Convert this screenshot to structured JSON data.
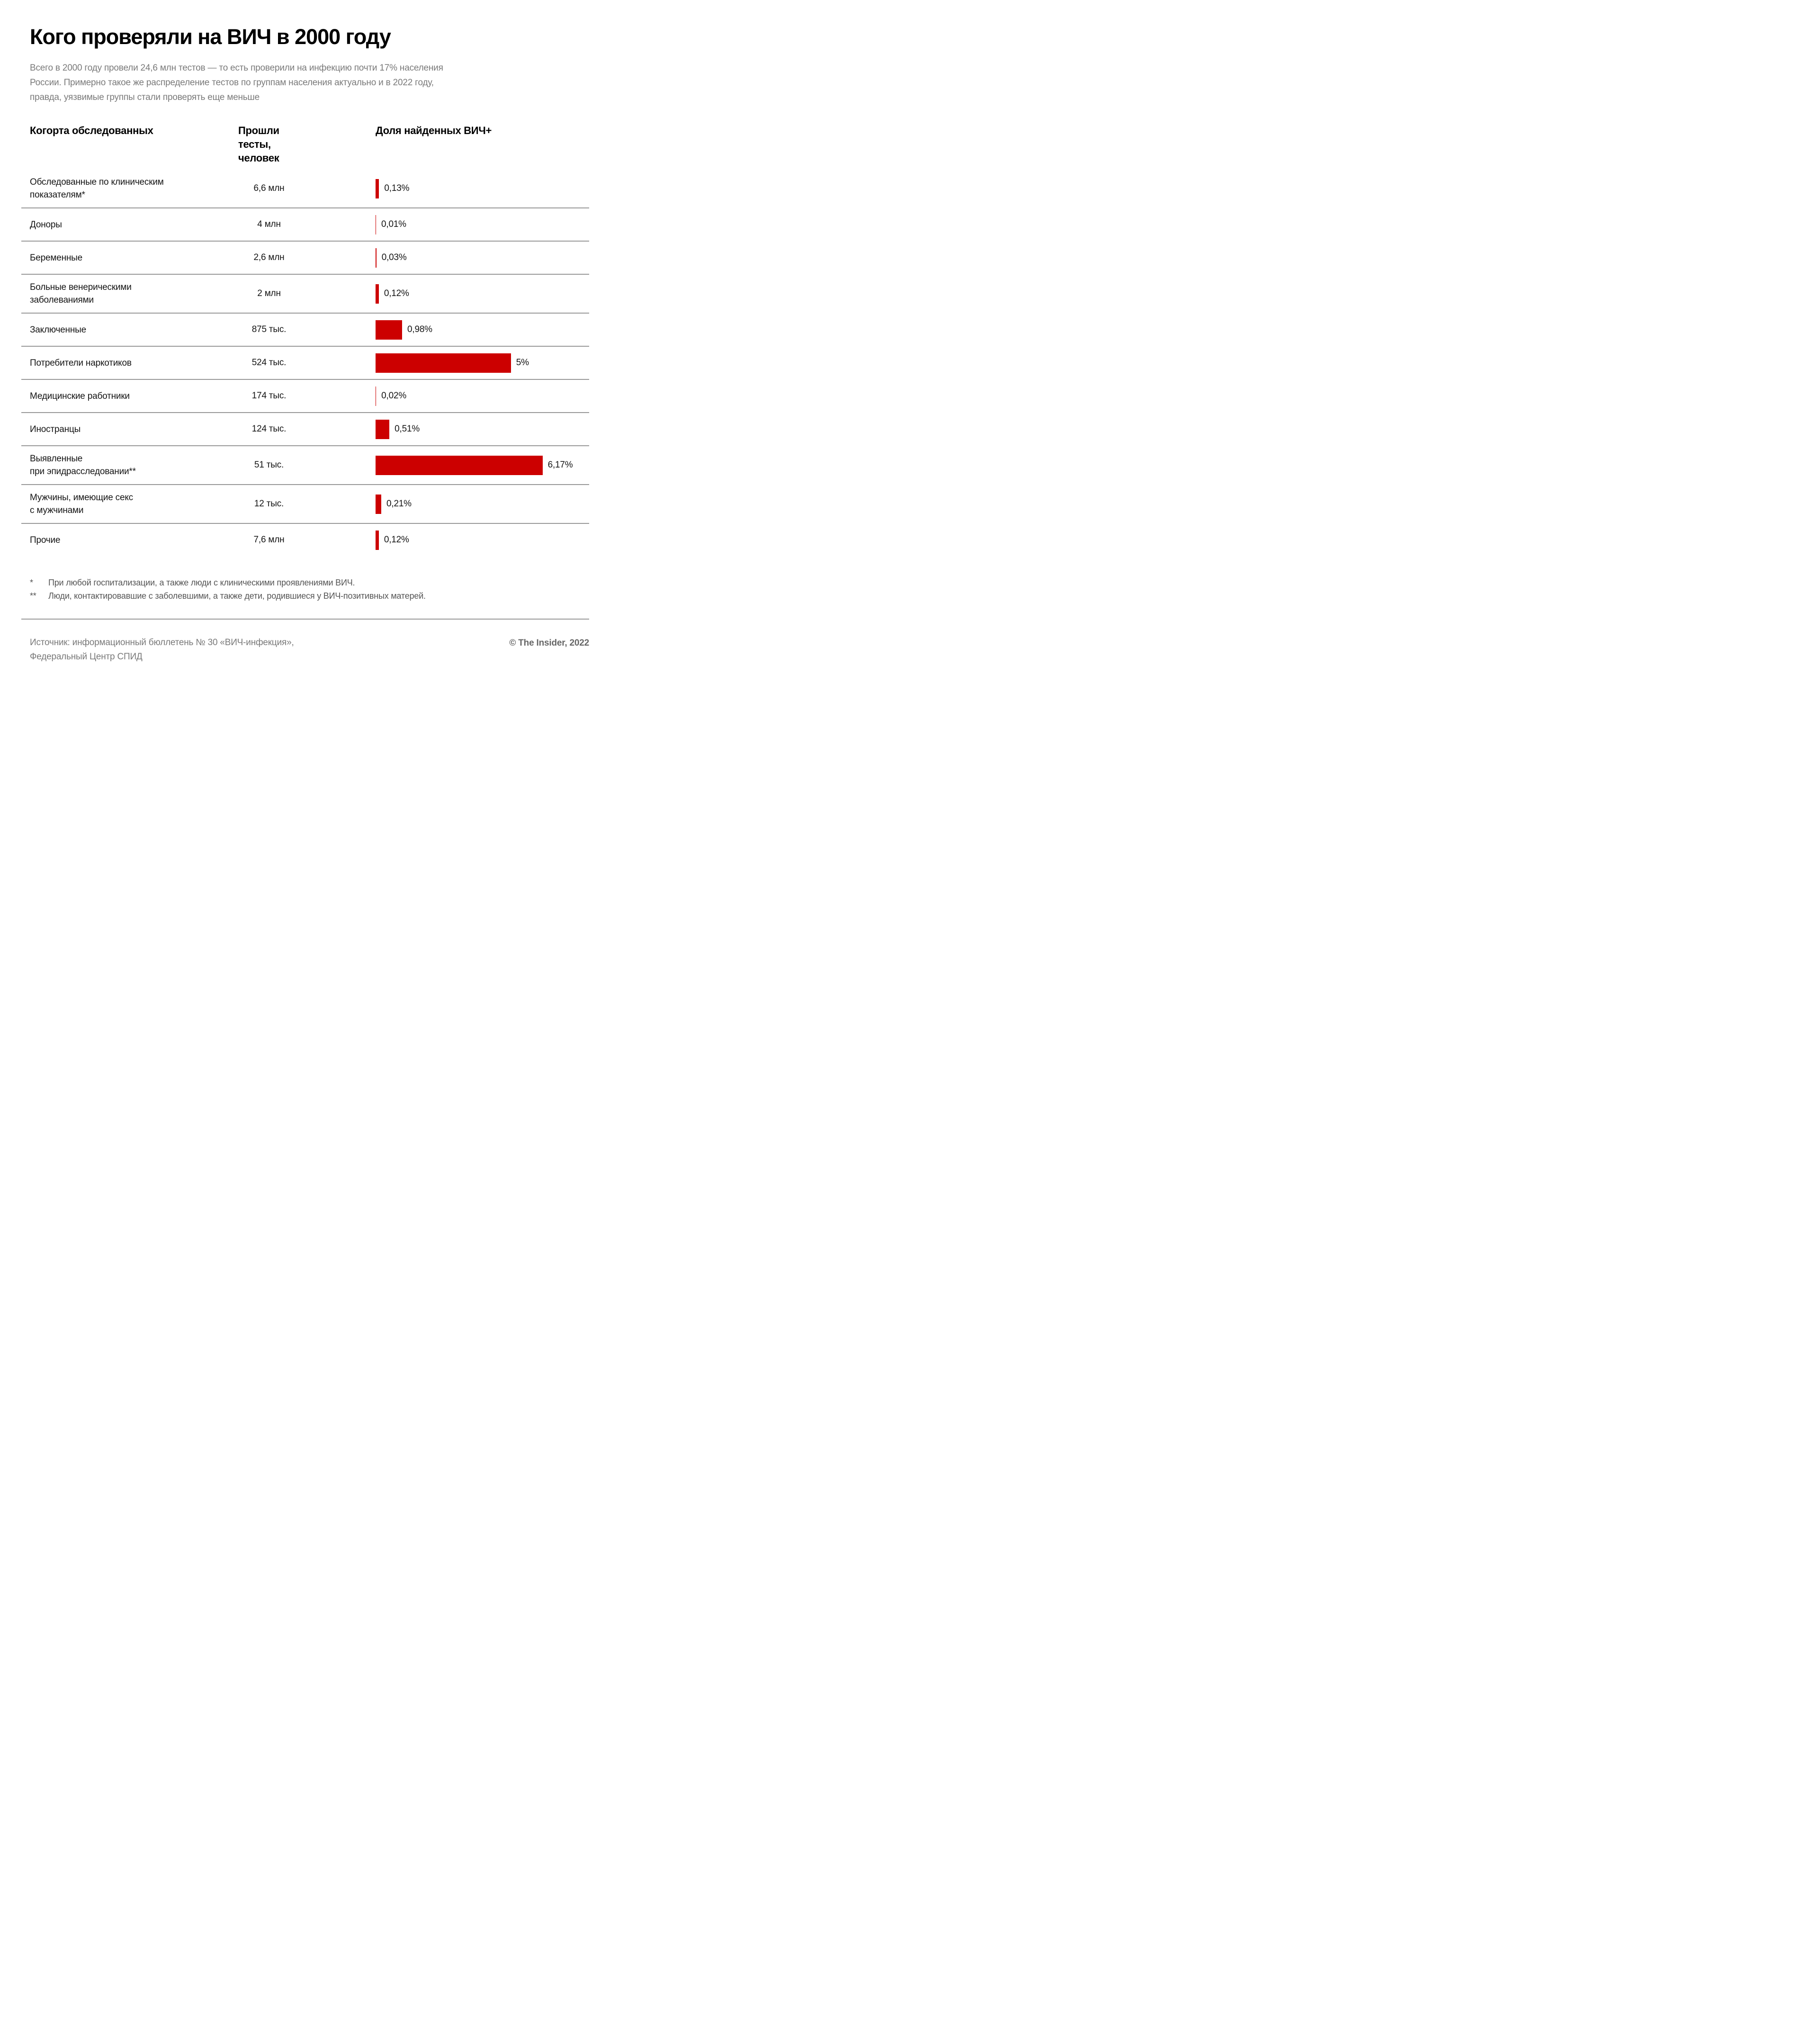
{
  "title": "Кого проверяли на ВИЧ в 2000 году",
  "subtitle": "Всего в 2000 году провели 24,6 млн тестов — то есть проверили на инфекцию почти 17% населения\nРоссии. Примерно такое же распределение тестов по группам населения актуально и в 2022 году,\nправда, уязвимые группы стали проверять еще меньше",
  "columns": {
    "cohort": "Когорта обследованных",
    "tested": "Прошли тесты,\nчеловек",
    "share": "Доля найденных ВИЧ+"
  },
  "chart_data": {
    "type": "bar",
    "orientation": "horizontal",
    "title": "Кого проверяли на ВИЧ в 2000 году",
    "xlabel": "Доля найденных ВИЧ+ (%)",
    "xlim": [
      0,
      6.5
    ],
    "grid": false,
    "bar_color": "#cc0000",
    "categories": [
      "Обследованные по клиническим\nпоказателям*",
      "Доноры",
      "Беременные",
      "Больные венерическими\nзаболеваниями",
      "Заключенные",
      "Потребители наркотиков",
      "Медицинские работники",
      "Иностранцы",
      "Выявленные\nпри эпидрасследовании**",
      "Мужчины, имеющие секс\nс мужчинами",
      "Прочие"
    ],
    "series": [
      {
        "name": "Прошли тесты, человек",
        "values": [
          "6,6 млн",
          "4 млн",
          "2,6 млн",
          "2 млн",
          "875 тыс.",
          "524 тыс.",
          "174 тыс.",
          "124 тыс.",
          "51 тыс.",
          "12 тыс.",
          "7,6 млн"
        ]
      },
      {
        "name": "Доля найденных ВИЧ+ (%)",
        "values": [
          0.13,
          0.01,
          0.03,
          0.12,
          0.98,
          5,
          0.02,
          0.51,
          6.17,
          0.21,
          0.12
        ]
      }
    ],
    "pct_labels": [
      "0,13%",
      "0,01%",
      "0,03%",
      "0,12%",
      "0,98%",
      "5%",
      "0,02%",
      "0,51%",
      "6,17%",
      "0,21%",
      "0,12%"
    ]
  },
  "footnotes": [
    {
      "marker": "*",
      "text": "При любой госпитализации, а также люди с клиническими проявлениями ВИЧ."
    },
    {
      "marker": "**",
      "text": "Люди, контактировавшие с заболевшими, а также дети, родившиеся у ВИЧ-позитивных матерей."
    }
  ],
  "source": "Источник: информационный бюллетень № 30 «ВИЧ-инфекция»,\nФедеральный Центр СПИД",
  "credit": "© The Insider, 2022",
  "colors": {
    "bar_red": "#cc0000",
    "title_black": "#000000",
    "muted_gray": "#7a7a7a",
    "separator_gray": "#9a9a9a"
  }
}
